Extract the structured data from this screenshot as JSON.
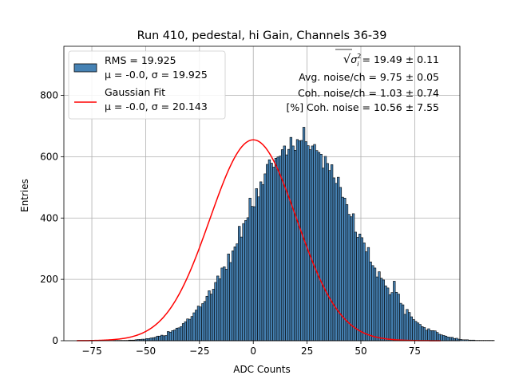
{
  "chart_data": {
    "type": "bar",
    "title": "Run 410, pedestal, hi Gain, Channels 36-39",
    "xlabel": "ADC Counts",
    "ylabel": "Entries",
    "xlim": [
      -88,
      96
    ],
    "ylim": [
      0,
      960
    ],
    "x_ticks": [
      -75,
      -50,
      -25,
      0,
      25,
      50,
      75
    ],
    "y_ticks": [
      0,
      200,
      400,
      600,
      800
    ],
    "grid": true,
    "legend_position": "top-left",
    "series": [
      {
        "name": "RMS = 19.925",
        "name_line2": "μ = -0.0, σ = 19.925",
        "kind": "histogram",
        "color": "#4682b4",
        "edge_color": "#000000",
        "bin_width": 1,
        "bin_start": -65,
        "values": [
          1,
          1,
          1,
          1,
          1,
          1,
          1,
          2,
          2,
          2,
          3,
          4,
          4,
          5,
          5,
          7,
          7,
          9,
          10,
          11,
          15,
          15,
          18,
          16,
          17,
          30,
          28,
          33,
          35,
          41,
          42,
          46,
          56,
          62,
          71,
          70,
          79,
          91,
          100,
          113,
          110,
          121,
          128,
          145,
          163,
          152,
          168,
          190,
          211,
          202,
          237,
          241,
          233,
          283,
          255,
          293,
          306,
          316,
          373,
          338,
          382,
          392,
          401,
          465,
          438,
          437,
          496,
          469,
          518,
          509,
          544,
          575,
          590,
          579,
          566,
          595,
          599,
          602,
          623,
          635,
          606,
          624,
          663,
          635,
          621,
          656,
          652,
          653,
          696,
          649,
          636,
          623,
          635,
          640,
          620,
          614,
          608,
          563,
          601,
          578,
          555,
          574,
          531,
          513,
          533,
          500,
          468,
          465,
          444,
          412,
          404,
          414,
          354,
          337,
          348,
          336,
          319,
          290,
          304,
          257,
          245,
          237,
          208,
          225,
          204,
          198,
          179,
          172,
          150,
          157,
          194,
          158,
          152,
          122,
          117,
          86,
          102,
          92,
          78,
          69,
          63,
          58,
          53,
          46,
          43,
          34,
          39,
          33,
          33,
          32,
          27,
          21,
          19,
          17,
          15,
          12,
          11,
          11,
          7,
          8,
          5,
          4,
          3,
          3,
          3,
          2,
          2,
          2,
          1,
          1,
          1,
          1,
          1,
          1,
          1,
          1,
          1
        ]
      },
      {
        "name": "Gaussian Fit",
        "name_line2": "μ = -0.0, σ = 20.143",
        "kind": "line",
        "color": "#ff0000",
        "mu": 0.0,
        "sigma": 20.143,
        "amplitude": 655,
        "x_range": [
          -82,
          87
        ]
      }
    ],
    "annotations": [
      {
        "prefix": "√",
        "math": "σ",
        "sup": "2",
        "sub": "i",
        "text": " = 19.49 ± 0.11"
      },
      {
        "text": "Avg. noise/ch = 9.75 ± 0.05"
      },
      {
        "text": "Coh. noise/ch = 1.03 ± 0.74"
      },
      {
        "text": "[%] Coh. noise = 10.56 ± 7.55"
      }
    ]
  }
}
